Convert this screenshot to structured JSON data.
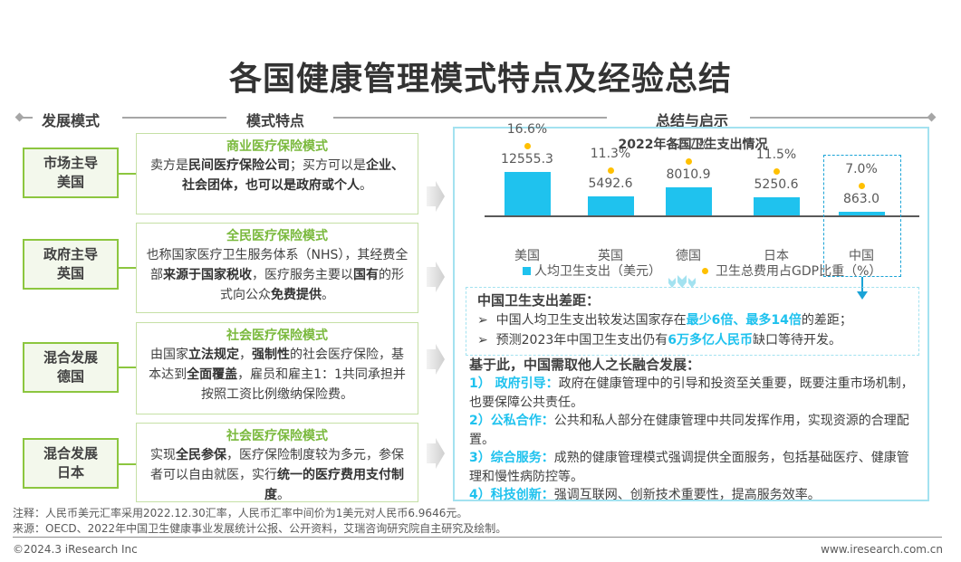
{
  "title": "各国健康管理模式特点及经验总结",
  "section_headers": {
    "mode": "发展模式",
    "features": "模式特点",
    "summary": "总结与启示"
  },
  "rows": [
    {
      "mode_line1": "市场主导",
      "mode_line2": "美国",
      "feature_title": "商业医疗保险模式",
      "feature_segments": [
        {
          "text": "卖方是",
          "bold": false
        },
        {
          "text": "民间医疗保险公司",
          "bold": true
        },
        {
          "text": "；买方可以是",
          "bold": false
        },
        {
          "text": "企业、社会团体，也可以是政府或个人",
          "bold": true
        },
        {
          "text": "。",
          "bold": false
        }
      ]
    },
    {
      "mode_line1": "政府主导",
      "mode_line2": "英国",
      "feature_title": "全民医疗保险模式",
      "feature_segments": [
        {
          "text": "也称国家医疗卫生服务体系（NHS），其经费全部",
          "bold": false
        },
        {
          "text": "来源于国家税收",
          "bold": true
        },
        {
          "text": "，医疗服务主要以",
          "bold": false
        },
        {
          "text": "国有",
          "bold": true
        },
        {
          "text": "的形式向公众",
          "bold": false
        },
        {
          "text": "免费提供",
          "bold": true
        },
        {
          "text": "。",
          "bold": false
        }
      ]
    },
    {
      "mode_line1": "混合发展",
      "mode_line2": "德国",
      "feature_title": "社会医疗保险模式",
      "feature_segments": [
        {
          "text": "由国家",
          "bold": false
        },
        {
          "text": "立法规定",
          "bold": true
        },
        {
          "text": "，",
          "bold": false
        },
        {
          "text": "强制性",
          "bold": true
        },
        {
          "text": "的社会医疗保险，基本达到",
          "bold": false
        },
        {
          "text": "全面覆盖",
          "bold": true
        },
        {
          "text": "，雇员和雇主1：1共同承担并按照工资比例缴纳保险费。",
          "bold": false
        }
      ]
    },
    {
      "mode_line1": "混合发展",
      "mode_line2": "日本",
      "feature_title": "社会医疗保险模式",
      "feature_segments": [
        {
          "text": "实现",
          "bold": false
        },
        {
          "text": "全民参保",
          "bold": true
        },
        {
          "text": "，医疗保险制度较为多元，参保者可以自由就医，实行",
          "bold": false
        },
        {
          "text": "统一的医疗费用支付制度",
          "bold": true
        },
        {
          "text": "。",
          "bold": false
        }
      ]
    }
  ],
  "chart_data": {
    "type": "bar",
    "title": "2022年各国卫生支出情况",
    "categories": [
      "美国",
      "英国",
      "德国",
      "日本",
      "中国"
    ],
    "series": [
      {
        "name": "人均卫生支出（美元）",
        "type": "bar",
        "values": [
          12555.3,
          5492.6,
          8010.9,
          5250.6,
          863.0
        ],
        "labels": [
          "12555.3",
          "5492.6",
          "8010.9",
          "5250.6",
          "863.0"
        ],
        "color": "#1fc2ee"
      },
      {
        "name": "卫生总费用占GDP比重（%）",
        "type": "scatter",
        "values": [
          16.6,
          11.3,
          12.7,
          11.5,
          7.0
        ],
        "labels": [
          "16.6%",
          "11.3%",
          "12.7%",
          "11.5%",
          "7.0%"
        ],
        "color": "#ffc000"
      }
    ],
    "legend_position": "bottom",
    "grid": false,
    "highlighted_category": "中国"
  },
  "gap": {
    "title": "中国卫生支出差距：",
    "bullet": "➢",
    "line1_pre": "中国人均卫生支出较发达国家存在",
    "line1_hi": "最少6倍、最多14倍",
    "line1_post": "的差距；",
    "line2_pre": "预测2023年中国卫生支出仍有",
    "line2_hi": "6万多亿人民币",
    "line2_post": "缺口等待开发。"
  },
  "based_on": "基于此，中国需取他人之长融合发展：",
  "points": [
    {
      "label": "1）  政府引导：",
      "text": "政府在健康管理中的引导和投资至关重要，既要注重市场机制，也要保障公共责任。"
    },
    {
      "label": "2）公私合作：",
      "text": "公共和私人部分在健康管理中共同发挥作用，实现资源的合理配置。"
    },
    {
      "label": "3）综合服务：",
      "text": "成熟的健康管理模式强调提供全面服务，包括基础医疗、健康管理和慢性病防控等。"
    },
    {
      "label": "4）科技创新：",
      "text": "强调互联网、创新技术重要性，提高服务效率。"
    }
  ],
  "notes": {
    "note": "注释：人民币美元汇率采用2022.12.30汇率，人民币汇率中间价为1美元对人民币6.9646元。",
    "source": "来源：OECD、2022年中国卫生健康事业发展统计公报、公开资料，艾瑞咨询研究院自主研究及绘制。"
  },
  "footer": {
    "copyright": "©2024.3 iResearch Inc",
    "website": "www.iresearch.com.cn"
  },
  "colors": {
    "accent_green": "#8cc63f",
    "accent_blue": "#1fc2ee",
    "dot_yellow": "#ffc000"
  }
}
